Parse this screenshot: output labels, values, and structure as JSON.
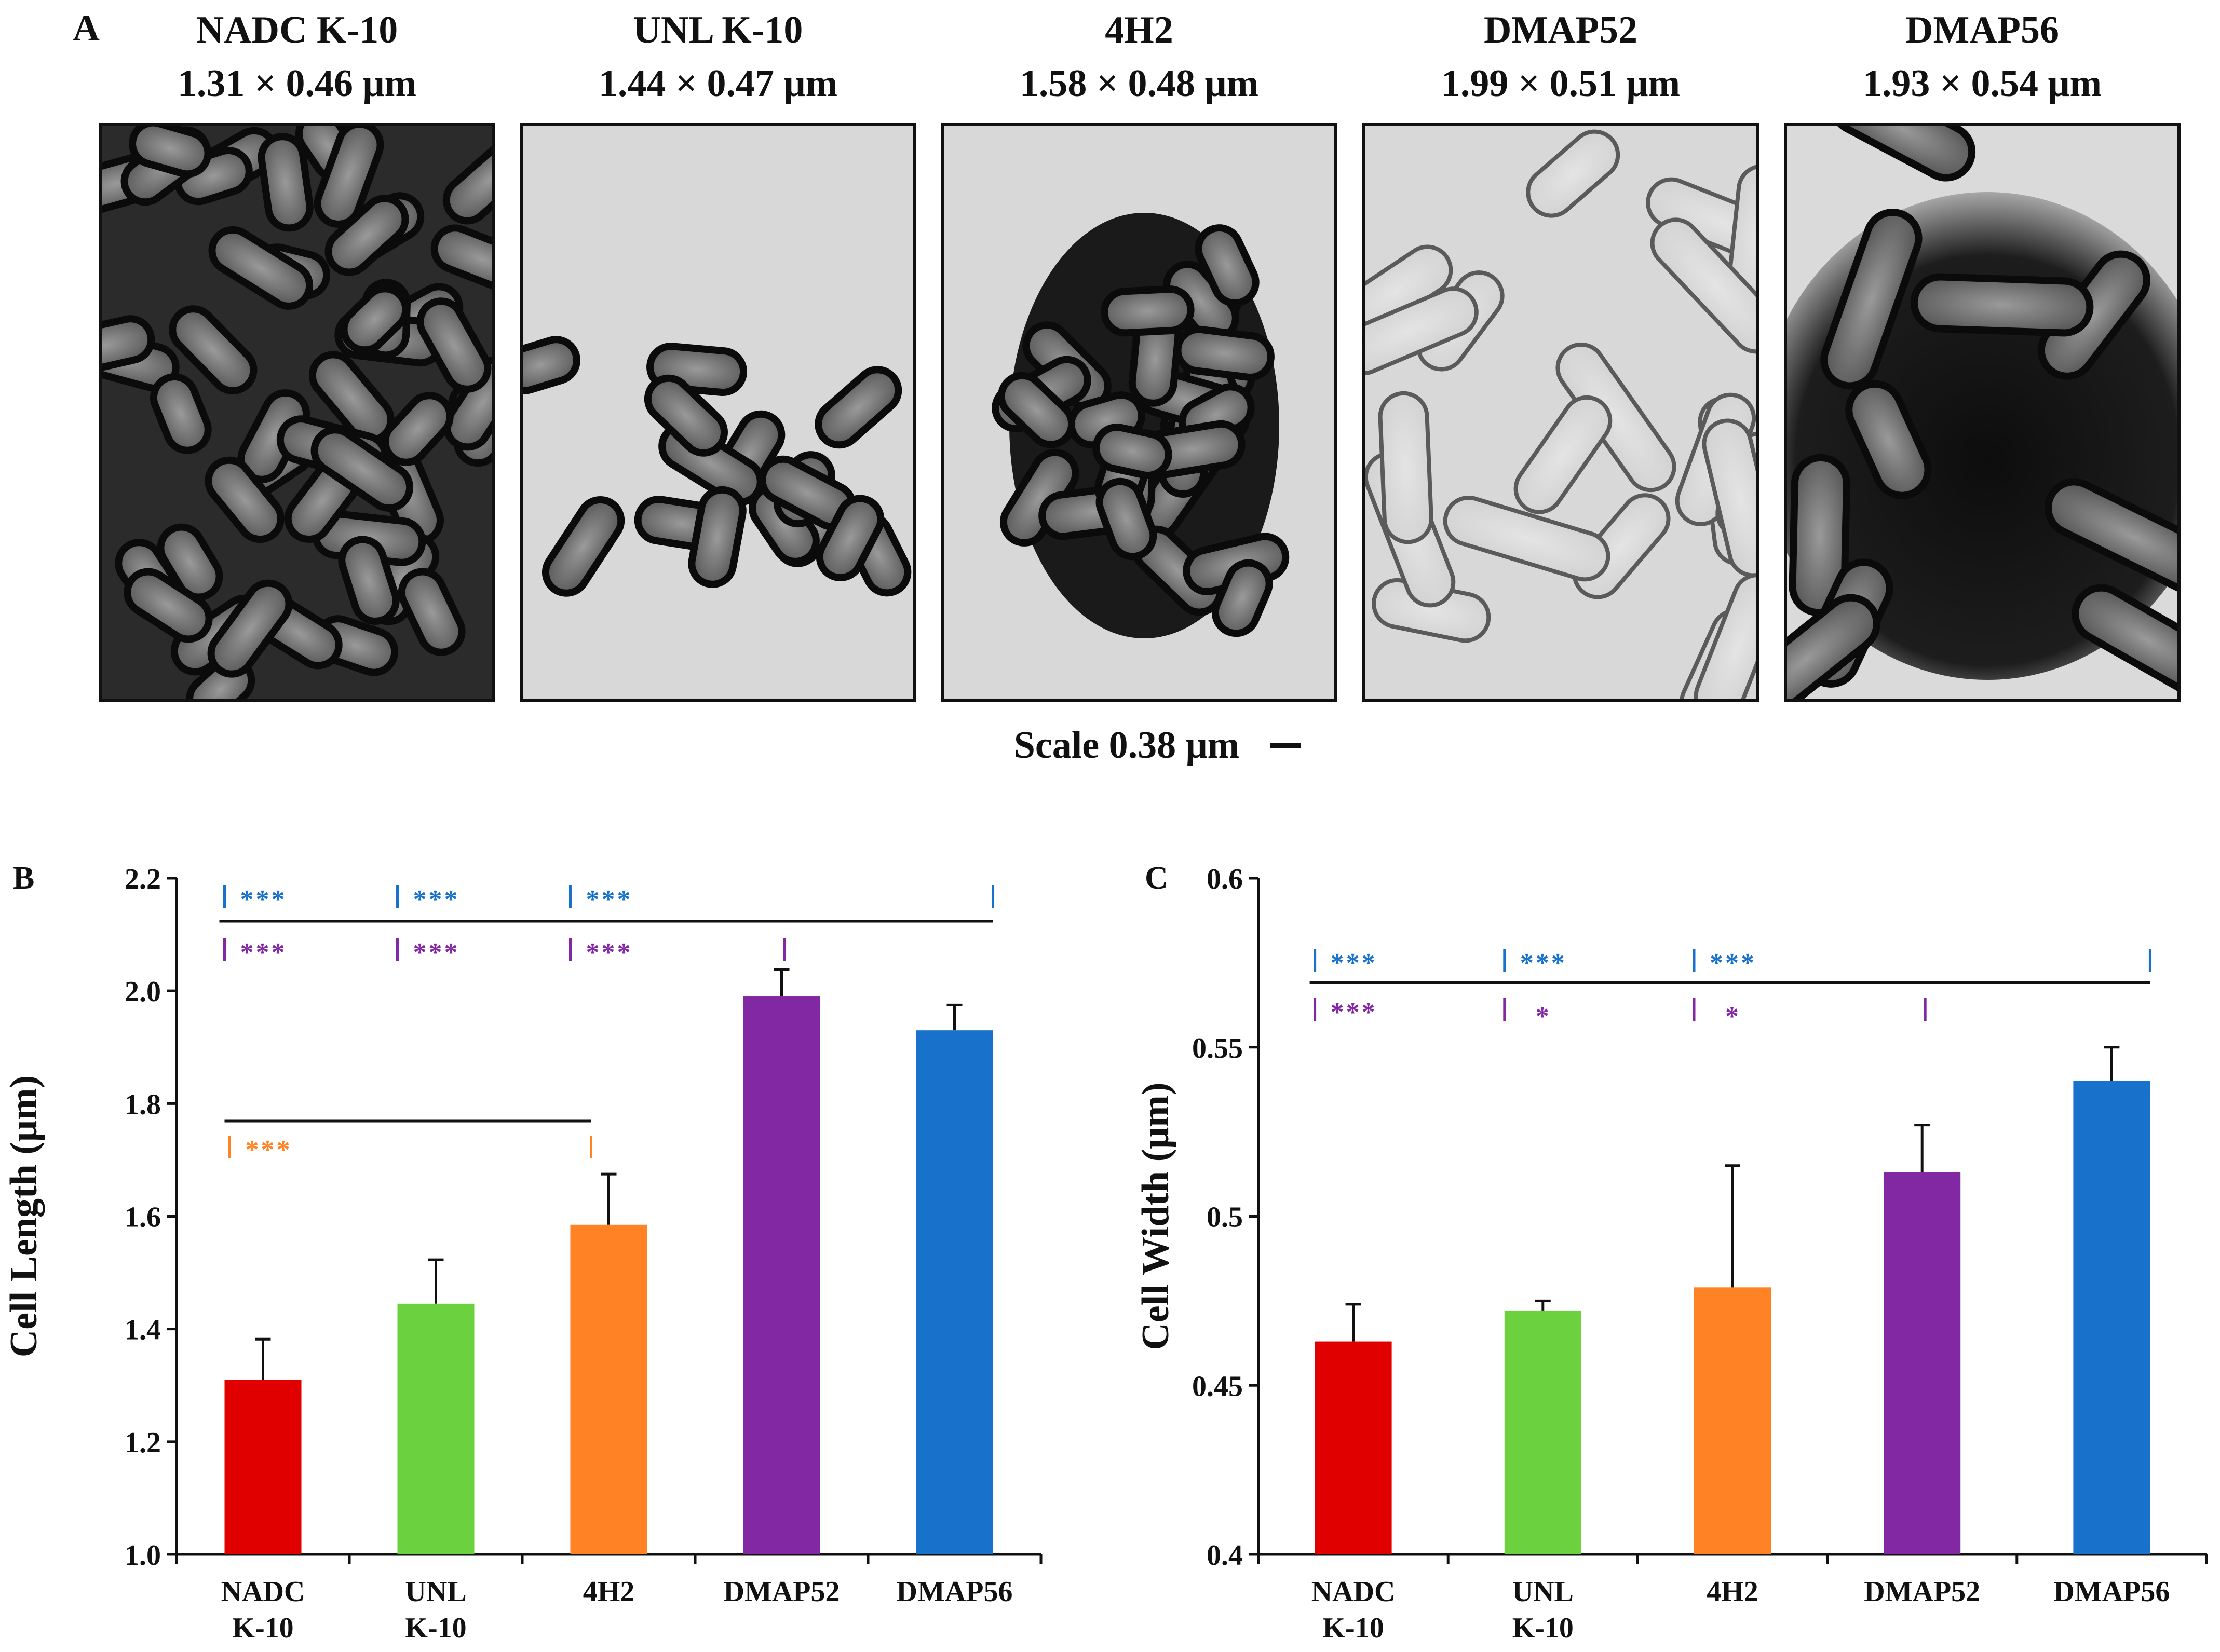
{
  "panel_a": {
    "label": "A",
    "scale_text": "Scale 0.38 μm",
    "images": [
      {
        "name": "NADC K-10",
        "dims": "1.31 × 0.46 μm"
      },
      {
        "name": "UNL K-10",
        "dims": "1.44 × 0.47 μm"
      },
      {
        "name": "4H2",
        "dims": "1.58 × 0.48 μm"
      },
      {
        "name": "DMAP52",
        "dims": "1.99 × 0.51 μm"
      },
      {
        "name": "DMAP56",
        "dims": "1.93 × 0.54 μm"
      }
    ]
  },
  "colors": {
    "NADC K-10": "#E00000",
    "UNL K-10": "#6CD13E",
    "4H2": "#FF8325",
    "DMAP52": "#8328A3",
    "DMAP56": "#1872CC"
  },
  "chart_data": [
    {
      "panel": "B",
      "type": "bar",
      "title": "",
      "xlabel": "",
      "ylabel": "Cell Length (μm)",
      "categories": [
        [
          "NADC",
          "K-10"
        ],
        [
          "UNL",
          "K-10"
        ],
        [
          "4H2"
        ],
        [
          "DMAP52"
        ],
        [
          "DMAP56"
        ]
      ],
      "values": [
        1.31,
        1.445,
        1.585,
        1.99,
        1.93
      ],
      "errors": [
        0.072,
        0.078,
        0.09,
        0.048,
        0.045
      ],
      "ylim": [
        1.0,
        2.2
      ],
      "yticks": [
        "1.0",
        "1.2",
        "1.4",
        "1.6",
        "1.8",
        "2.0",
        "2.2"
      ],
      "ytick_values": [
        1.0,
        1.2,
        1.4,
        1.6,
        1.8,
        2.0,
        2.2
      ],
      "significance": [
        {
          "vs": "DMAP56",
          "color": "#1872CC",
          "pairs": [
            {
              "cat": 0,
              "mark": "***"
            },
            {
              "cat": 1,
              "mark": "***"
            },
            {
              "cat": 2,
              "mark": "***"
            }
          ],
          "ref": 4
        },
        {
          "vs": "DMAP52",
          "color": "#8328A3",
          "pairs": [
            {
              "cat": 0,
              "mark": "***"
            },
            {
              "cat": 1,
              "mark": "***"
            },
            {
              "cat": 2,
              "mark": "***"
            }
          ],
          "ref": 3
        },
        {
          "vs": "4H2",
          "color": "#FF8325",
          "pairs": [
            {
              "cat": 0,
              "mark": "***"
            }
          ],
          "ref": 2
        }
      ]
    },
    {
      "panel": "C",
      "type": "bar",
      "title": "",
      "xlabel": "",
      "ylabel": "Cell Width (μm)",
      "categories": [
        [
          "NADC",
          "K-10"
        ],
        [
          "UNL",
          "K-10"
        ],
        [
          "4H2"
        ],
        [
          "DMAP52"
        ],
        [
          "DMAP56"
        ]
      ],
      "values": [
        0.463,
        0.472,
        0.479,
        0.513,
        0.54
      ],
      "errors": [
        0.011,
        0.003,
        0.036,
        0.014,
        0.01
      ],
      "ylim": [
        0.4,
        0.6
      ],
      "yticks": [
        "0.4",
        "0.45",
        "0.5",
        "0.55",
        "0.6"
      ],
      "ytick_values": [
        0.4,
        0.45,
        0.5,
        0.55,
        0.6
      ],
      "significance": [
        {
          "vs": "DMAP56",
          "color": "#1872CC",
          "pairs": [
            {
              "cat": 0,
              "mark": "***"
            },
            {
              "cat": 1,
              "mark": "***"
            },
            {
              "cat": 2,
              "mark": "***"
            }
          ],
          "ref": 4
        },
        {
          "vs": "DMAP52",
          "color": "#8328A3",
          "pairs": [
            {
              "cat": 0,
              "mark": "***"
            },
            {
              "cat": 1,
              "mark": "*"
            },
            {
              "cat": 2,
              "mark": "*"
            }
          ],
          "ref": 3
        }
      ]
    }
  ]
}
